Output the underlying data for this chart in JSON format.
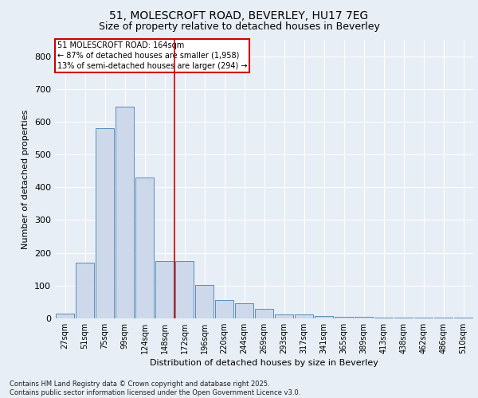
{
  "title_line1": "51, MOLESCROFT ROAD, BEVERLEY, HU17 7EG",
  "title_line2": "Size of property relative to detached houses in Beverley",
  "xlabel": "Distribution of detached houses by size in Beverley",
  "ylabel": "Number of detached properties",
  "categories": [
    "27sqm",
    "51sqm",
    "75sqm",
    "99sqm",
    "124sqm",
    "148sqm",
    "172sqm",
    "196sqm",
    "220sqm",
    "244sqm",
    "269sqm",
    "293sqm",
    "317sqm",
    "341sqm",
    "365sqm",
    "389sqm",
    "413sqm",
    "438sqm",
    "462sqm",
    "486sqm",
    "510sqm"
  ],
  "values": [
    15,
    170,
    580,
    645,
    430,
    175,
    175,
    103,
    55,
    45,
    28,
    13,
    12,
    7,
    4,
    4,
    3,
    2,
    2,
    2,
    2
  ],
  "bar_color": "#cdd9ea",
  "bar_edge_color": "#5b8db8",
  "vline_x_index": 6,
  "vline_color": "#cc0000",
  "annotation_text": "51 MOLESCROFT ROAD: 164sqm\n← 87% of detached houses are smaller (1,958)\n13% of semi-detached houses are larger (294) →",
  "annotation_box_facecolor": "#ffffff",
  "annotation_box_edgecolor": "#cc0000",
  "ylim": [
    0,
    850
  ],
  "yticks": [
    0,
    100,
    200,
    300,
    400,
    500,
    600,
    700,
    800
  ],
  "bg_color": "#e8eef5",
  "plot_bg_color": "#e8eef5",
  "fig_bg_color": "#e8eef5",
  "grid_color": "#ffffff",
  "footer_text": "Contains HM Land Registry data © Crown copyright and database right 2025.\nContains public sector information licensed under the Open Government Licence v3.0.",
  "title_fontsize": 10,
  "subtitle_fontsize": 9,
  "tick_fontsize": 7,
  "ylabel_fontsize": 8,
  "xlabel_fontsize": 8,
  "annotation_fontsize": 7,
  "footer_fontsize": 6
}
